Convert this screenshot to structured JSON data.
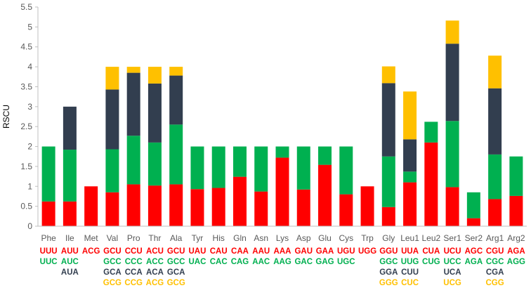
{
  "chart_data": {
    "type": "bar",
    "stacked": true,
    "title": "",
    "xlabel": "",
    "ylabel": "RSCU",
    "ylim": [
      0,
      5.5
    ],
    "yticks": [
      "0",
      "0.5",
      "1",
      "1.5",
      "2",
      "2.5",
      "3",
      "3.5",
      "4",
      "4.5",
      "5",
      "5.5"
    ],
    "grid": false,
    "legend": "none",
    "colors": [
      "#ff0000",
      "#00b050",
      "#323e4f",
      "#ffc000"
    ],
    "categories": [
      "Phe",
      "Ile",
      "Met",
      "Val",
      "Pro",
      "Thr",
      "Ala",
      "Tyr",
      "His",
      "Gln",
      "Asn",
      "Lys",
      "Asp",
      "Glu",
      "Cys",
      "Trp",
      "Gly",
      "Leu1",
      "Leu2",
      "Ser1",
      "Ser2",
      "Arg1",
      "Arg2"
    ],
    "series": [
      {
        "name": "codon 1",
        "values": [
          0.62,
          0.62,
          1.0,
          0.85,
          1.05,
          1.02,
          1.05,
          0.93,
          0.96,
          1.24,
          0.87,
          1.72,
          0.92,
          1.54,
          0.8,
          1.0,
          0.48,
          1.1,
          2.1,
          0.98,
          0.2,
          0.68,
          0.76
        ]
      },
      {
        "name": "codon 2",
        "values": [
          1.38,
          1.3,
          0,
          1.08,
          1.22,
          1.08,
          1.5,
          1.07,
          1.04,
          0.76,
          1.13,
          0.28,
          1.08,
          0.46,
          1.2,
          0,
          1.27,
          0.27,
          0.52,
          1.66,
          0.65,
          1.12,
          0.99
        ]
      },
      {
        "name": "codon 3",
        "values": [
          0,
          1.08,
          0,
          1.5,
          1.58,
          1.48,
          1.23,
          0,
          0,
          0,
          0,
          0,
          0,
          0,
          0,
          0,
          1.84,
          0.81,
          0,
          1.94,
          0,
          1.66,
          0
        ]
      },
      {
        "name": "codon 4",
        "values": [
          0,
          0,
          0,
          0.57,
          0.15,
          0.42,
          0.22,
          0,
          0,
          0,
          0,
          0,
          0,
          0,
          0,
          0,
          0.42,
          1.2,
          0,
          0.58,
          0,
          0.82,
          0
        ]
      }
    ],
    "codon_labels": [
      [
        "UUU",
        "UUC",
        "",
        ""
      ],
      [
        "AUU",
        "AUC",
        "AUA",
        ""
      ],
      [
        "ACG",
        "",
        "",
        ""
      ],
      [
        "GCU",
        "GCC",
        "GCA",
        "GCG"
      ],
      [
        "CCU",
        "CCC",
        "CCA",
        "CCG"
      ],
      [
        "ACU",
        "ACC",
        "ACA",
        "ACG"
      ],
      [
        "GCU",
        "GCC",
        "GCA",
        "GCG"
      ],
      [
        "UAU",
        "UAC",
        "",
        ""
      ],
      [
        "CAU",
        "CAC",
        "",
        ""
      ],
      [
        "CAA",
        "CAG",
        "",
        ""
      ],
      [
        "AAU",
        "AAC",
        "",
        ""
      ],
      [
        "AAA",
        "AAG",
        "",
        ""
      ],
      [
        "GAU",
        "GAC",
        "",
        ""
      ],
      [
        "GAA",
        "GAG",
        "",
        ""
      ],
      [
        "UGU",
        "UGC",
        "",
        ""
      ],
      [
        "UGG",
        "",
        "",
        ""
      ],
      [
        "GGU",
        "GGC",
        "GGA",
        "GGG"
      ],
      [
        "UUA",
        "UUG",
        "CUU",
        "CUC"
      ],
      [
        "CUA",
        "CUG",
        "",
        ""
      ],
      [
        "UCU",
        "UCC",
        "UCA",
        "UCG"
      ],
      [
        "AGC",
        "AGA",
        "",
        ""
      ],
      [
        "CGU",
        "CGC",
        "CGA",
        "CGG"
      ],
      [
        "AGA",
        "AGG",
        "",
        ""
      ]
    ]
  }
}
